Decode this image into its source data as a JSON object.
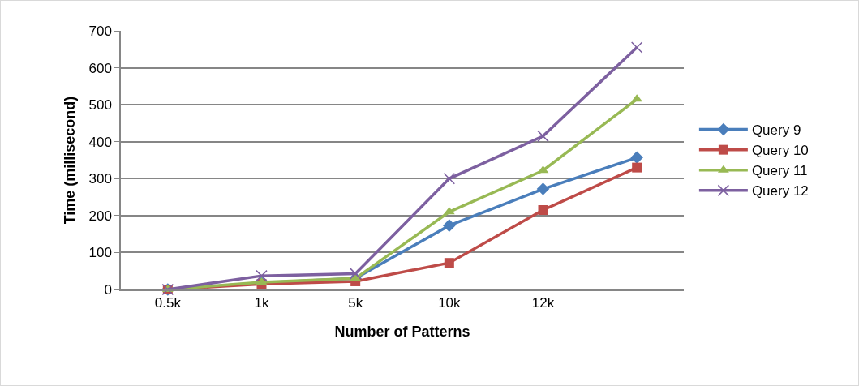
{
  "chart_data": {
    "type": "line",
    "xlabel": "Number of Patterns",
    "ylabel": "Time (millisecond)",
    "categories": [
      "0.5k",
      "1k",
      "5k",
      "10k",
      "12k",
      null
    ],
    "series": [
      {
        "name": "Query 9",
        "color": "#4a7ebb",
        "marker": "diamond",
        "values": [
          0,
          18,
          30,
          173,
          272,
          357
        ]
      },
      {
        "name": "Query 10",
        "color": "#be4b48",
        "marker": "square",
        "values": [
          0,
          15,
          22,
          72,
          215,
          330
        ]
      },
      {
        "name": "Query 11",
        "color": "#98b954",
        "marker": "triangle",
        "values": [
          0,
          20,
          30,
          210,
          322,
          515
        ]
      },
      {
        "name": "Query 12",
        "color": "#7d60a0",
        "marker": "cross",
        "values": [
          0,
          37,
          43,
          300,
          415,
          655
        ]
      }
    ],
    "ylim": [
      0,
      700
    ],
    "yticks": [
      0,
      100,
      200,
      300,
      400,
      500,
      600,
      700
    ],
    "grid": "y",
    "legend": "right",
    "line_style": "solid"
  }
}
